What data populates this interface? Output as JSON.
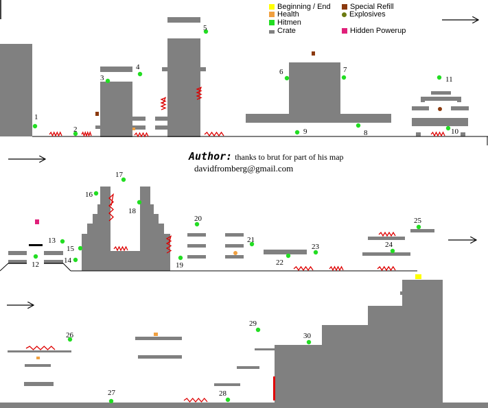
{
  "legend": {
    "beginning_end": "Beginning / End",
    "health": "Health",
    "hitmen": "Hitmen",
    "crate": "Crate",
    "special_refill": "Special Refill",
    "explosives": "Explosives",
    "hidden_powerup": "Hidden Powerup"
  },
  "credits": {
    "author_label": "Author:",
    "author_note": "thanks to brut for part of his map",
    "email": "davidfromberg@gmail.com"
  },
  "colors": {
    "wall": "#808080",
    "hitman": "#22dd22",
    "health": "#f0a040",
    "special_refill": "#8b3a0e",
    "explosives": "#6b7a10",
    "hidden_powerup": "#e0207a",
    "beginning_end": "#ffff00",
    "blood": "#dd0000",
    "door": "#e00000"
  },
  "hitmen_numbers": [
    "1",
    "2",
    "3",
    "4",
    "5",
    "6",
    "7",
    "8",
    "9",
    "10",
    "11",
    "12",
    "13",
    "14",
    "15",
    "16",
    "17",
    "18",
    "19",
    "20",
    "21",
    "22",
    "23",
    "24",
    "25",
    "26",
    "27",
    "28",
    "29",
    "30"
  ]
}
